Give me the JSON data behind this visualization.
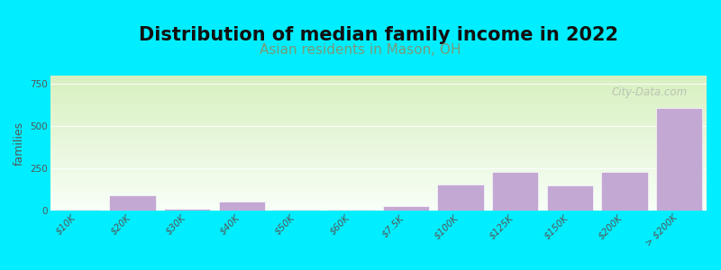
{
  "title": "Distribution of median family income in 2022",
  "subtitle": "Asian residents in Mason, OH",
  "categories": [
    "$10K",
    "$20K",
    "$30K",
    "$40K",
    "$50K",
    "$60K",
    "$7.5K",
    "$100K",
    "$125K",
    "$150K",
    "$200K",
    "> $200K"
  ],
  "values": [
    5,
    90,
    10,
    55,
    8,
    3,
    25,
    155,
    230,
    150,
    230,
    610
  ],
  "bar_color": "#c4a8d4",
  "bg_outer": "#00eeff",
  "bg_plot_top": "#d8f0c0",
  "bg_plot_bottom": "#f8fff8",
  "ylabel": "families",
  "yticks": [
    0,
    250,
    500,
    750
  ],
  "ylim": [
    0,
    800
  ],
  "title_fontsize": 15,
  "subtitle_fontsize": 11,
  "subtitle_color": "#7a9a7a",
  "ylabel_fontsize": 9,
  "tick_fontsize": 7.5,
  "watermark": "City-Data.com"
}
